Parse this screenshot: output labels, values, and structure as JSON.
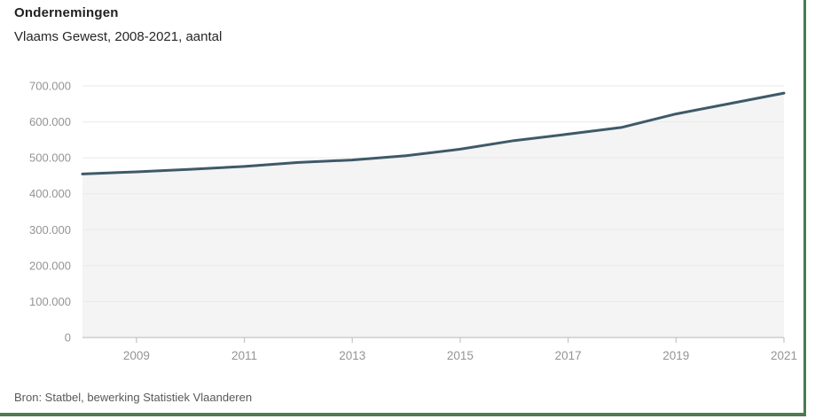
{
  "header": {
    "title": "Ondernemingen",
    "subtitle": "Vlaams Gewest, 2008-2021, aantal"
  },
  "footer": {
    "source": "Bron: Statbel, bewerking Statistiek Vlaanderen"
  },
  "chart_data": {
    "type": "area",
    "title": "Ondernemingen",
    "subtitle": "Vlaams Gewest, 2008-2021, aantal",
    "xlabel": "",
    "ylabel": "aantal",
    "x": [
      2008,
      2009,
      2010,
      2011,
      2012,
      2013,
      2014,
      2015,
      2016,
      2017,
      2018,
      2019,
      2020,
      2021
    ],
    "series": [
      {
        "name": "Ondernemingen",
        "values": [
          455000,
          461000,
          468000,
          476000,
          487000,
          494000,
          506000,
          524000,
          548000,
          566000,
          585000,
          622000,
          651000,
          680000
        ]
      }
    ],
    "ylim": [
      0,
      700000
    ],
    "ytick_step": 100000,
    "ytick_labels": [
      "0",
      "100.000",
      "200.000",
      "300.000",
      "400.000",
      "500.000",
      "600.000",
      "700.000"
    ],
    "xticks": [
      2009,
      2011,
      2013,
      2015,
      2017,
      2019,
      2021
    ],
    "xtick_labels": [
      "2009",
      "2011",
      "2013",
      "2015",
      "2017",
      "2019",
      "2021"
    ],
    "grid": true,
    "legend": "none",
    "colors": {
      "line": "#3e5a68",
      "area": "#f4f4f4",
      "grid": "#e9e9e9",
      "axis": "#c4c4c4",
      "tick_text": "#949494",
      "border_green": "#4d7a51",
      "title": "#1f1f1f",
      "source": "#595959"
    }
  }
}
